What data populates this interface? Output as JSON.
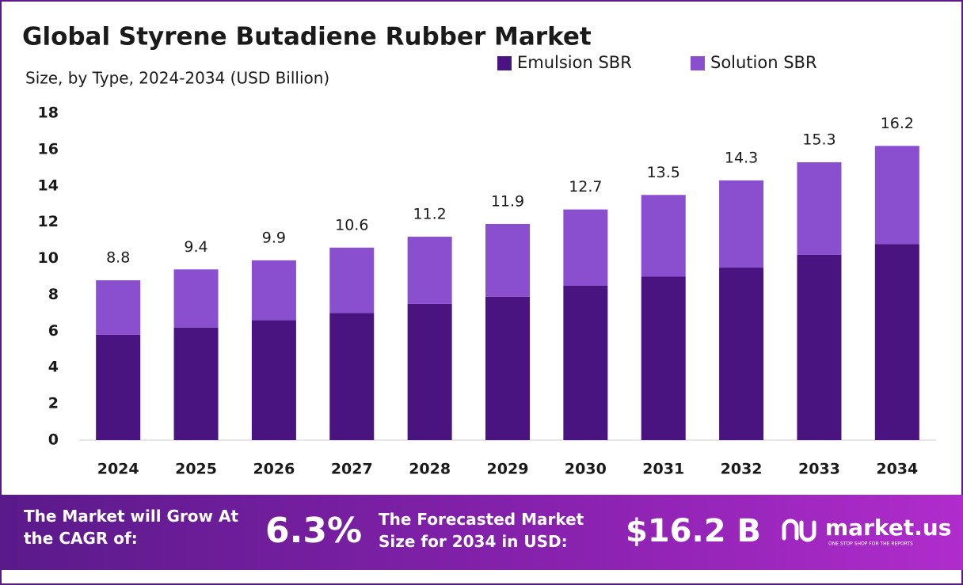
{
  "chart_data": {
    "type": "stacked-bar",
    "title": "Global Styrene Butadiene Rubber Market",
    "subtitle": "Size, by Type, 2024-2034 (USD Billion)",
    "categories": [
      "2024",
      "2025",
      "2026",
      "2027",
      "2028",
      "2029",
      "2030",
      "2031",
      "2032",
      "2033",
      "2034"
    ],
    "series": [
      {
        "name": "Emulsion SBR",
        "color": "#4a1480",
        "values": [
          5.8,
          6.2,
          6.6,
          7.0,
          7.5,
          7.9,
          8.5,
          9.0,
          9.5,
          10.2,
          10.8
        ]
      },
      {
        "name": "Solution SBR",
        "color": "#8a4fcf",
        "values": [
          3.0,
          3.2,
          3.3,
          3.6,
          3.7,
          4.0,
          4.2,
          4.5,
          4.8,
          5.1,
          5.4
        ]
      }
    ],
    "totals": [
      8.8,
      9.4,
      9.9,
      10.6,
      11.2,
      11.9,
      12.7,
      13.5,
      14.3,
      15.3,
      16.2
    ],
    "ylim": [
      0,
      18
    ],
    "yticks": [
      0,
      2,
      4,
      6,
      8,
      10,
      12,
      14,
      16,
      18
    ],
    "grid": false
  },
  "footer": {
    "cagr_text": "The Market will Grow At the CAGR of:",
    "cagr_value": "6.3%",
    "forecast_text": "The Forecasted Market Size for 2034 in USD:",
    "forecast_value": "$16.2 B",
    "brand": "market.us",
    "tagline": "ONE STOP SHOP FOR THE REPORTS"
  }
}
